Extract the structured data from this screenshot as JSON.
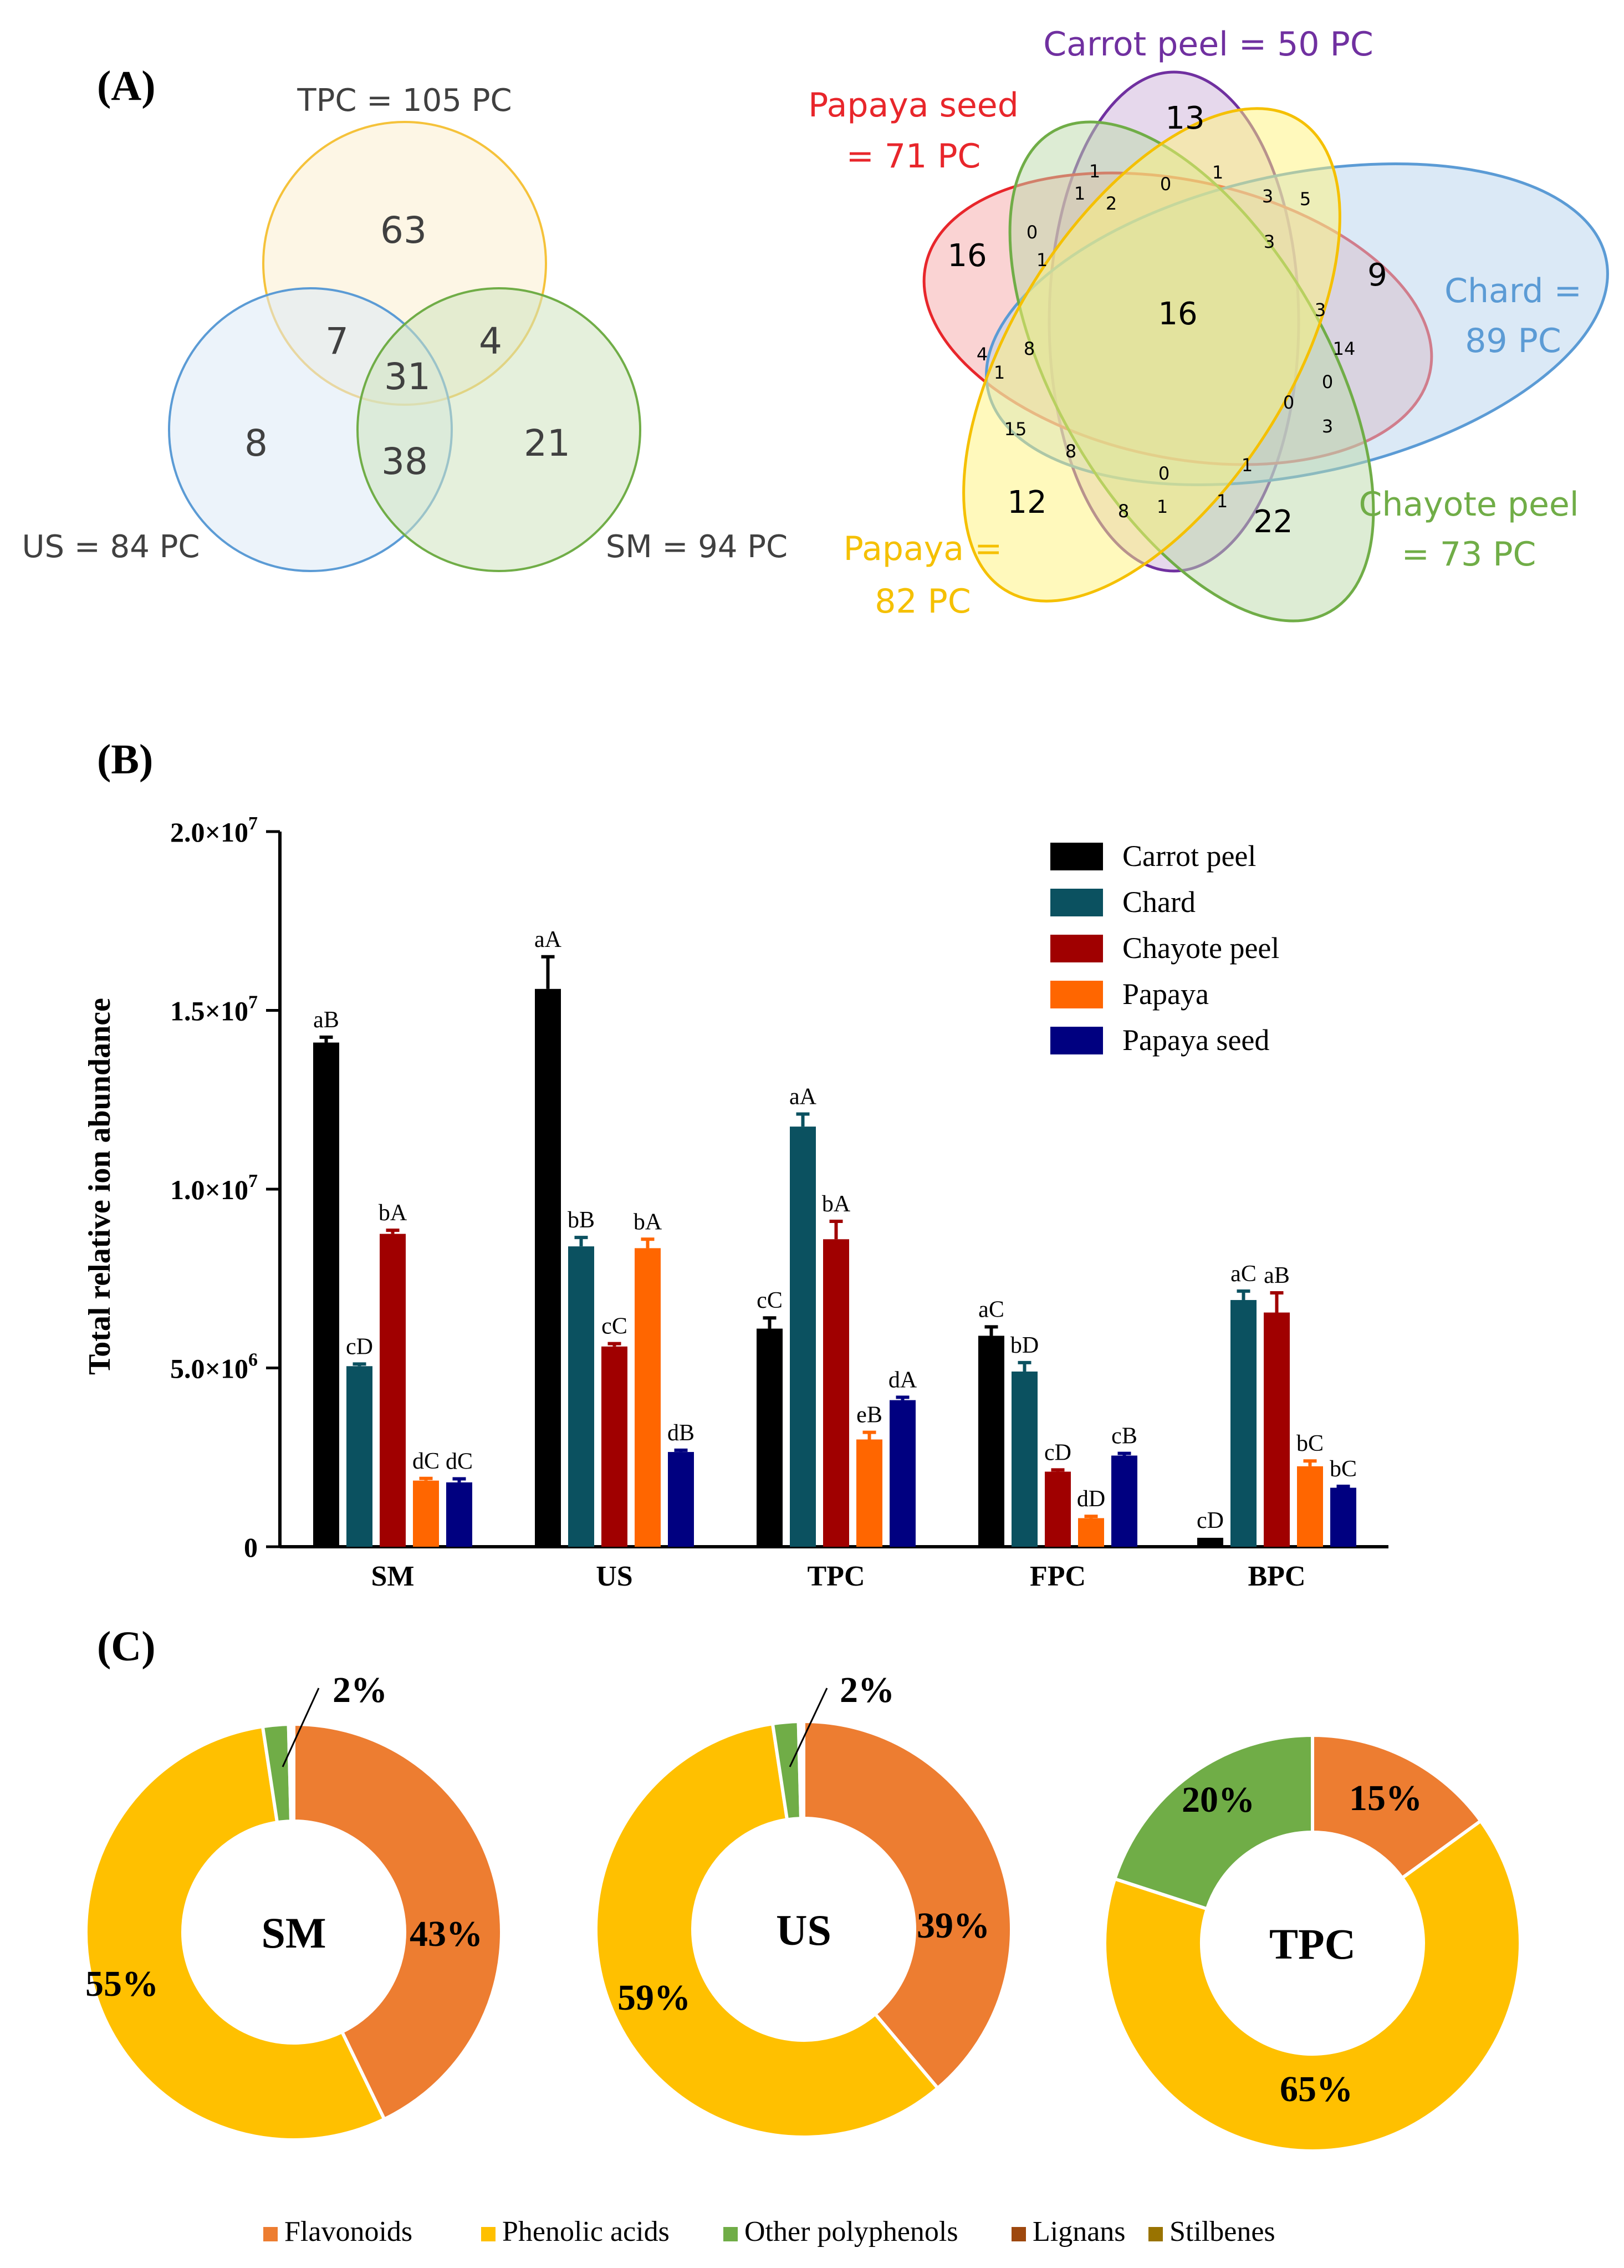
{
  "panel_a": {
    "label": "(A)",
    "venn3": {
      "sets": [
        {
          "name": "TPC = 105 PC",
          "color": "#f5c23a",
          "fill": "#fbefcf"
        },
        {
          "name": "US = 84 PC",
          "color": "#5b9bd5",
          "fill": "#dce9f5"
        },
        {
          "name": "SM = 94 PC",
          "color": "#70ad47",
          "fill": "#cfe4bf"
        }
      ],
      "regions": {
        "tpc_only": "63",
        "us_only": "8",
        "sm_only": "21",
        "tpc_us": "7",
        "tpc_sm": "4",
        "us_sm": "38",
        "all": "31"
      }
    },
    "venn5": {
      "sets": [
        {
          "name": "Carrot peel = 50 PC",
          "color": "#7030a0",
          "fill": "#cdb2d9"
        },
        {
          "name": "Papaya seed",
          "name2": "= 71 PC",
          "color": "#e8262b",
          "fill": "#f6a7a7"
        },
        {
          "name": "Chard =",
          "name2": "89 PC",
          "color": "#5b9bd5",
          "fill": "#b7d3ee"
        },
        {
          "name": "Chayote peel",
          "name2": "= 73 PC",
          "color": "#70ad47",
          "fill": "#bcd9a9"
        },
        {
          "name": "Papaya =",
          "name2": "82 PC",
          "color": "#f5c000",
          "fill": "#fff47a"
        }
      ],
      "big_labels": {
        "carrot": "13",
        "seed": "16",
        "chard": "9",
        "chayote": "22",
        "papaya": "12",
        "center": "16"
      },
      "small_labels": [
        "1",
        "1",
        "0",
        "1",
        "2",
        "3",
        "5",
        "0",
        "1",
        "3",
        "3",
        "14",
        "0",
        "0",
        "3",
        "4",
        "1",
        "8",
        "15",
        "8",
        "0",
        "1",
        "8",
        "1",
        "1"
      ]
    }
  },
  "panel_b": {
    "label": "(B)"
  },
  "panel_c": {
    "label": "(C)",
    "legend": [
      {
        "name": "Flavonoids",
        "color": "#ed7d31"
      },
      {
        "name": "Phenolic acids",
        "color": "#ffc000"
      },
      {
        "name": "Other polyphenols",
        "color": "#70ad47"
      },
      {
        "name": "Lignans",
        "color": "#9e480e"
      },
      {
        "name": "Stilbenes",
        "color": "#997300"
      }
    ]
  },
  "chart_data": [
    {
      "type": "bar",
      "title": "",
      "xlabel": "",
      "ylabel": "Total relative ion abundance",
      "ylim": [
        0,
        20000000
      ],
      "ytick_labels": [
        "0",
        "5.0x10^6",
        "1.0x10^7",
        "1.5x10^7",
        "2.0x10^7"
      ],
      "categories": [
        "SM",
        "US",
        "TPC",
        "FPC",
        "BPC"
      ],
      "series": [
        {
          "name": "Carrot peel",
          "color": "#000000",
          "values": [
            14100000,
            15600000,
            6100000,
            5900000,
            250000
          ],
          "errors": [
            150000,
            900000,
            300000,
            250000,
            0
          ],
          "labels": [
            "aB",
            "aA",
            "cC",
            "aC",
            "cD"
          ]
        },
        {
          "name": "Chard",
          "color": "#0b5160",
          "values": [
            5050000,
            8400000,
            11750000,
            4900000,
            6900000
          ],
          "errors": [
            60000,
            250000,
            350000,
            250000,
            250000
          ],
          "labels": [
            "cD",
            "bB",
            "aA",
            "bD",
            "aC"
          ]
        },
        {
          "name": "Chayote peel",
          "color": "#a00000",
          "values": [
            8750000,
            5600000,
            8600000,
            2100000,
            6550000
          ],
          "errors": [
            100000,
            80000,
            500000,
            50000,
            550000
          ],
          "labels": [
            "bA",
            "cC",
            "bA",
            "cD",
            "aB"
          ]
        },
        {
          "name": "Papaya",
          "color": "#ff6600",
          "values": [
            1850000,
            8350000,
            3000000,
            800000,
            2250000
          ],
          "errors": [
            60000,
            250000,
            200000,
            50000,
            150000
          ],
          "labels": [
            "dC",
            "bA",
            "eB",
            "dD",
            "bC"
          ]
        },
        {
          "name": "Papaya seed",
          "color": "#000080",
          "values": [
            1800000,
            2650000,
            4100000,
            2550000,
            1650000
          ],
          "errors": [
            100000,
            50000,
            80000,
            60000,
            40000
          ],
          "labels": [
            "dC",
            "dB",
            "dA",
            "cB",
            "bC"
          ]
        }
      ]
    },
    {
      "type": "pie",
      "title": "SM",
      "categories": [
        "Flavonoids",
        "Phenolic acids",
        "Other polyphenols",
        "Lignans",
        "Stilbenes"
      ],
      "values": [
        43,
        55,
        2,
        0.2,
        0.2
      ],
      "labels": [
        "43%",
        "55%",
        "2%",
        "",
        ""
      ]
    },
    {
      "type": "pie",
      "title": "US",
      "categories": [
        "Flavonoids",
        "Phenolic acids",
        "Other polyphenols",
        "Lignans",
        "Stilbenes"
      ],
      "values": [
        39,
        59,
        2,
        0.2,
        0.2
      ],
      "labels": [
        "39%",
        "59%",
        "2%",
        "",
        ""
      ]
    },
    {
      "type": "pie",
      "title": "TPC",
      "categories": [
        "Flavonoids",
        "Phenolic acids",
        "Other polyphenols",
        "Lignans",
        "Stilbenes"
      ],
      "values": [
        15,
        65,
        20,
        0,
        0
      ],
      "labels": [
        "15%",
        "65%",
        "20%",
        "",
        ""
      ]
    }
  ]
}
